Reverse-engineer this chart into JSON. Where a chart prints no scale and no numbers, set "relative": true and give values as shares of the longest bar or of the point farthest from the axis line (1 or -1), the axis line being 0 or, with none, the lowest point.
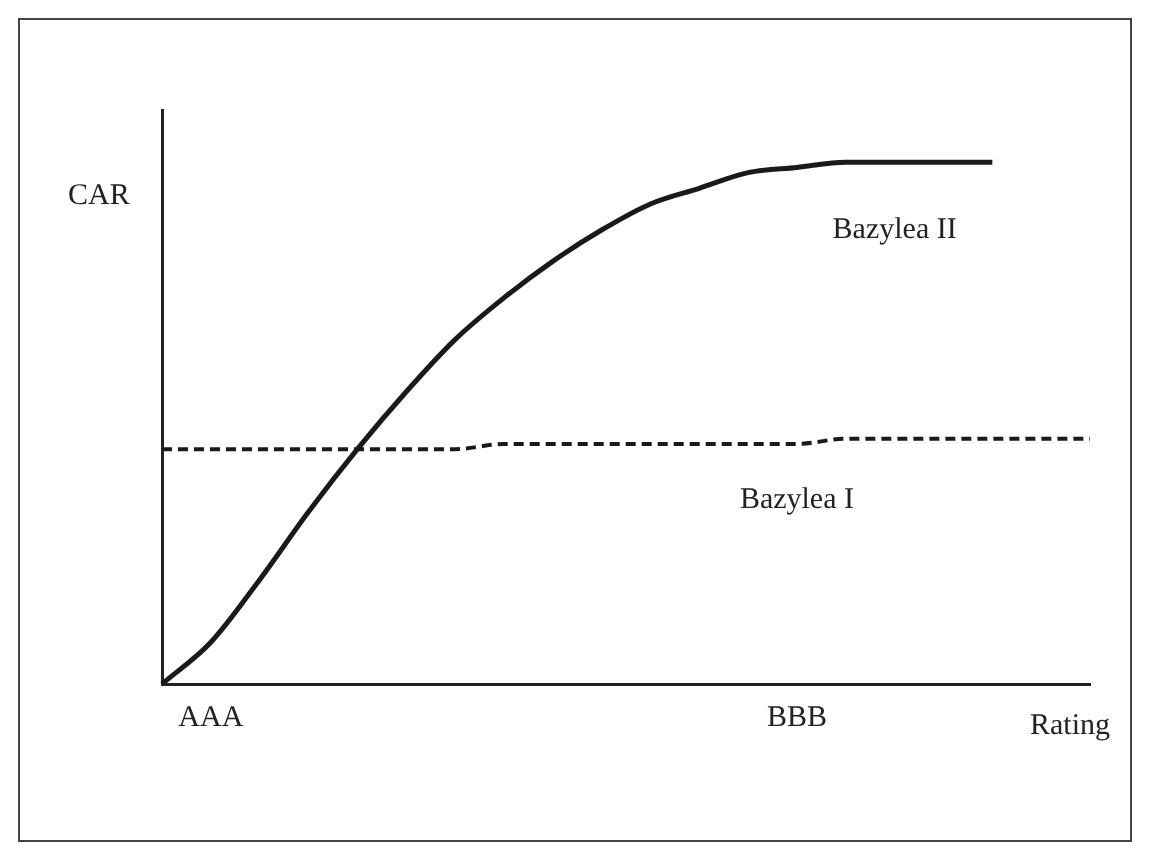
{
  "chart_data": {
    "type": "line",
    "relative": true,
    "ylabel": "CAR",
    "xlabel": "Rating",
    "categories": [
      null,
      "AAA",
      null,
      null,
      null,
      null,
      null,
      null,
      null,
      null,
      null,
      null,
      null,
      "BBB",
      null,
      null,
      null,
      null,
      null,
      null
    ],
    "series": [
      {
        "name": "Bazylea II",
        "color": "#1a1a1a",
        "line_style": "solid",
        "values": [
          0,
          0.08,
          0.2,
          0.33,
          0.45,
          0.56,
          0.66,
          0.74,
          0.81,
          0.87,
          0.92,
          0.95,
          0.98,
          0.99,
          1,
          1,
          1,
          1,
          null,
          null
        ]
      },
      {
        "name": "Bazylea I",
        "color": "#1a1a1a",
        "line_style": "dashed",
        "values": [
          0.45,
          0.45,
          0.45,
          0.45,
          0.45,
          0.45,
          0.45,
          0.46,
          0.46,
          0.46,
          0.46,
          0.46,
          0.46,
          0.46,
          0.47,
          0.47,
          0.47,
          0.47,
          0.47,
          0.47
        ]
      }
    ],
    "grid": false,
    "legend": false,
    "marker": "none"
  }
}
